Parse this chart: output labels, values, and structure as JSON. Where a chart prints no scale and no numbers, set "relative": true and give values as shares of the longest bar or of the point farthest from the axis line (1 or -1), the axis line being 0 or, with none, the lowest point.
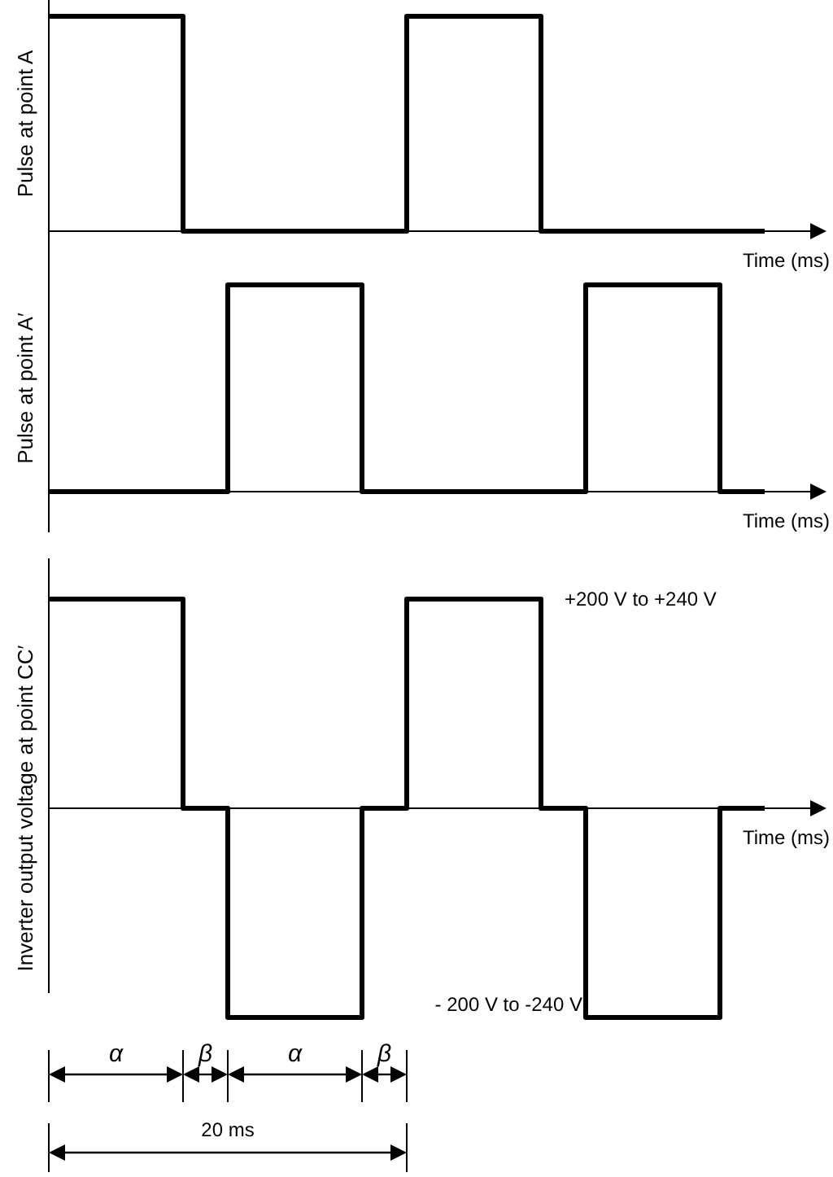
{
  "chart_data": [
    {
      "type": "step",
      "relative": true,
      "ylabel": "Pulse at point A",
      "xlabel": "Time (ms)",
      "categories": [
        null,
        null,
        null,
        null,
        null,
        null,
        null,
        null,
        null,
        null,
        null,
        null,
        null,
        null,
        null,
        null,
        null
      ],
      "series": [
        {
          "color": "#000000",
          "values": [
            1,
            1,
            1,
            0,
            0,
            0,
            0,
            0,
            1,
            1,
            1,
            0,
            0,
            0,
            0,
            0,
            0
          ]
        }
      ]
    },
    {
      "type": "step",
      "relative": true,
      "ylabel": "Pulse at point A′",
      "xlabel": "Time (ms)",
      "categories": [
        null,
        null,
        null,
        null,
        null,
        null,
        null,
        null,
        null,
        null,
        null,
        null,
        null,
        null,
        null,
        null,
        null
      ],
      "series": [
        {
          "color": "#000000",
          "values": [
            0,
            0,
            0,
            0,
            1,
            1,
            1,
            0,
            0,
            0,
            0,
            0,
            1,
            1,
            1,
            0,
            0
          ]
        }
      ]
    },
    {
      "type": "step",
      "relative": true,
      "ylabel": "Inverter output voltage at point CC′",
      "xlabel": "Time (ms)",
      "categories": [
        null,
        null,
        null,
        null,
        null,
        null,
        null,
        null,
        null,
        null,
        null,
        null,
        null,
        null,
        null,
        null,
        null
      ],
      "series": [
        {
          "color": "#000000",
          "values": [
            1,
            1,
            1,
            0,
            -1,
            -1,
            -1,
            0,
            1,
            1,
            1,
            0,
            -1,
            -1,
            -1,
            0,
            0
          ]
        }
      ],
      "annotations": [
        "+200 V to +240 V",
        "- 200 V to -240 V",
        "α",
        "β",
        "α",
        "β",
        "20 ms"
      ]
    }
  ]
}
